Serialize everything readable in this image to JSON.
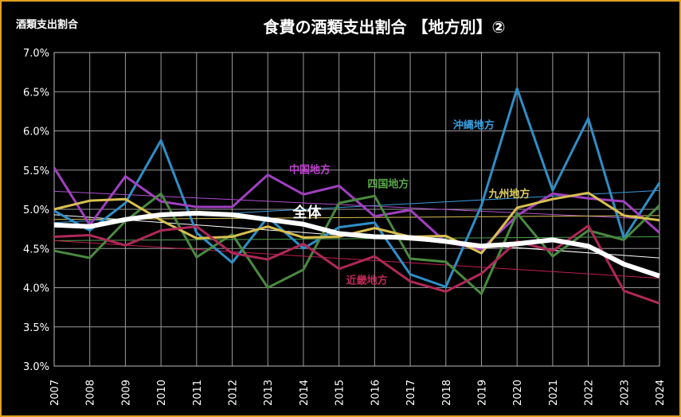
{
  "corner_label": "酒類支出割合",
  "title": "食費の酒類支出割合 【地方別】②",
  "chart_data": {
    "type": "line",
    "categories": [
      "2007",
      "2008",
      "2009",
      "2010",
      "2011",
      "2012",
      "2013",
      "2014",
      "2015",
      "2016",
      "2017",
      "2018",
      "2019",
      "2020",
      "2021",
      "2022",
      "2023",
      "2024"
    ],
    "ylim": [
      3.0,
      7.0
    ],
    "yticks": [
      "3.0%",
      "3.5%",
      "4.0%",
      "4.5%",
      "5.0%",
      "5.5%",
      "6.0%",
      "6.5%",
      "7.0%"
    ],
    "grid": true,
    "series": [
      {
        "name": "沖縄地方",
        "color": "#2e8fc8",
        "values": [
          4.98,
          4.73,
          5.08,
          5.88,
          4.7,
          4.32,
          4.9,
          4.5,
          4.77,
          4.83,
          4.17,
          4.01,
          5.05,
          6.54,
          5.24,
          6.16,
          4.63,
          5.34
        ]
      },
      {
        "name": "中国地方",
        "color": "#a040c0",
        "values": [
          5.53,
          4.8,
          5.42,
          5.1,
          5.03,
          5.03,
          5.44,
          5.19,
          5.3,
          4.91,
          4.99,
          4.58,
          4.49,
          4.92,
          5.2,
          5.14,
          5.1,
          4.7
        ]
      },
      {
        "name": "四国地方",
        "color": "#4a8a40",
        "values": [
          4.47,
          4.38,
          4.85,
          5.2,
          4.39,
          4.68,
          4.0,
          4.23,
          5.08,
          5.17,
          4.37,
          4.33,
          3.92,
          4.95,
          4.4,
          4.73,
          4.61,
          5.05
        ]
      },
      {
        "name": "九州地方",
        "color": "#d8c050",
        "values": [
          5.0,
          5.11,
          5.13,
          4.86,
          4.63,
          4.65,
          4.78,
          4.64,
          4.65,
          4.76,
          4.65,
          4.66,
          4.44,
          5.02,
          5.13,
          5.21,
          4.92,
          4.86
        ]
      },
      {
        "name": "近畿地方",
        "color": "#b02858",
        "values": [
          4.65,
          4.67,
          4.54,
          4.73,
          4.78,
          4.44,
          4.36,
          4.56,
          4.24,
          4.4,
          4.08,
          3.95,
          4.18,
          4.59,
          4.47,
          4.79,
          3.96,
          3.8
        ]
      },
      {
        "name": "全体",
        "color": "#ffffff",
        "values": [
          4.8,
          4.78,
          4.87,
          4.93,
          4.95,
          4.93,
          4.87,
          4.81,
          4.69,
          4.65,
          4.64,
          4.59,
          4.53,
          4.56,
          4.61,
          4.53,
          4.3,
          4.15
        ]
      }
    ],
    "trendlines": [
      {
        "series": "沖縄地方",
        "color": "#3a9ad8",
        "start": 4.83,
        "end": 5.24
      },
      {
        "series": "中国地方",
        "color": "#b050d0",
        "start": 5.23,
        "end": 4.87
      },
      {
        "series": "四国地方",
        "color": "#50a050",
        "start": 4.6,
        "end": 4.65
      },
      {
        "series": "九州地方",
        "color": "#d8c050",
        "start": 4.87,
        "end": 4.92
      },
      {
        "series": "近畿地方",
        "color": "#c02050",
        "start": 4.6,
        "end": 4.12
      },
      {
        "series": "全体",
        "color": "#ffffff",
        "start": 4.93,
        "end": 4.38
      }
    ],
    "annotations": [
      {
        "text": "沖縄地方",
        "color": "#3aa0e0",
        "cat": 11.2,
        "y": 6.03
      },
      {
        "text": "中国地方",
        "color": "#c040d0",
        "cat": 6.6,
        "y": 5.46
      },
      {
        "text": "四国地方",
        "color": "#58a848",
        "cat": 8.8,
        "y": 5.28
      },
      {
        "text": "九州地方",
        "color": "#e0d060",
        "cat": 12.2,
        "y": 5.15
      },
      {
        "text": "全体",
        "color": "#ffffff",
        "cat": 6.7,
        "y": 4.9,
        "big": true
      },
      {
        "text": "近畿地方",
        "color": "#c02858",
        "cat": 8.2,
        "y": 4.05
      }
    ]
  }
}
